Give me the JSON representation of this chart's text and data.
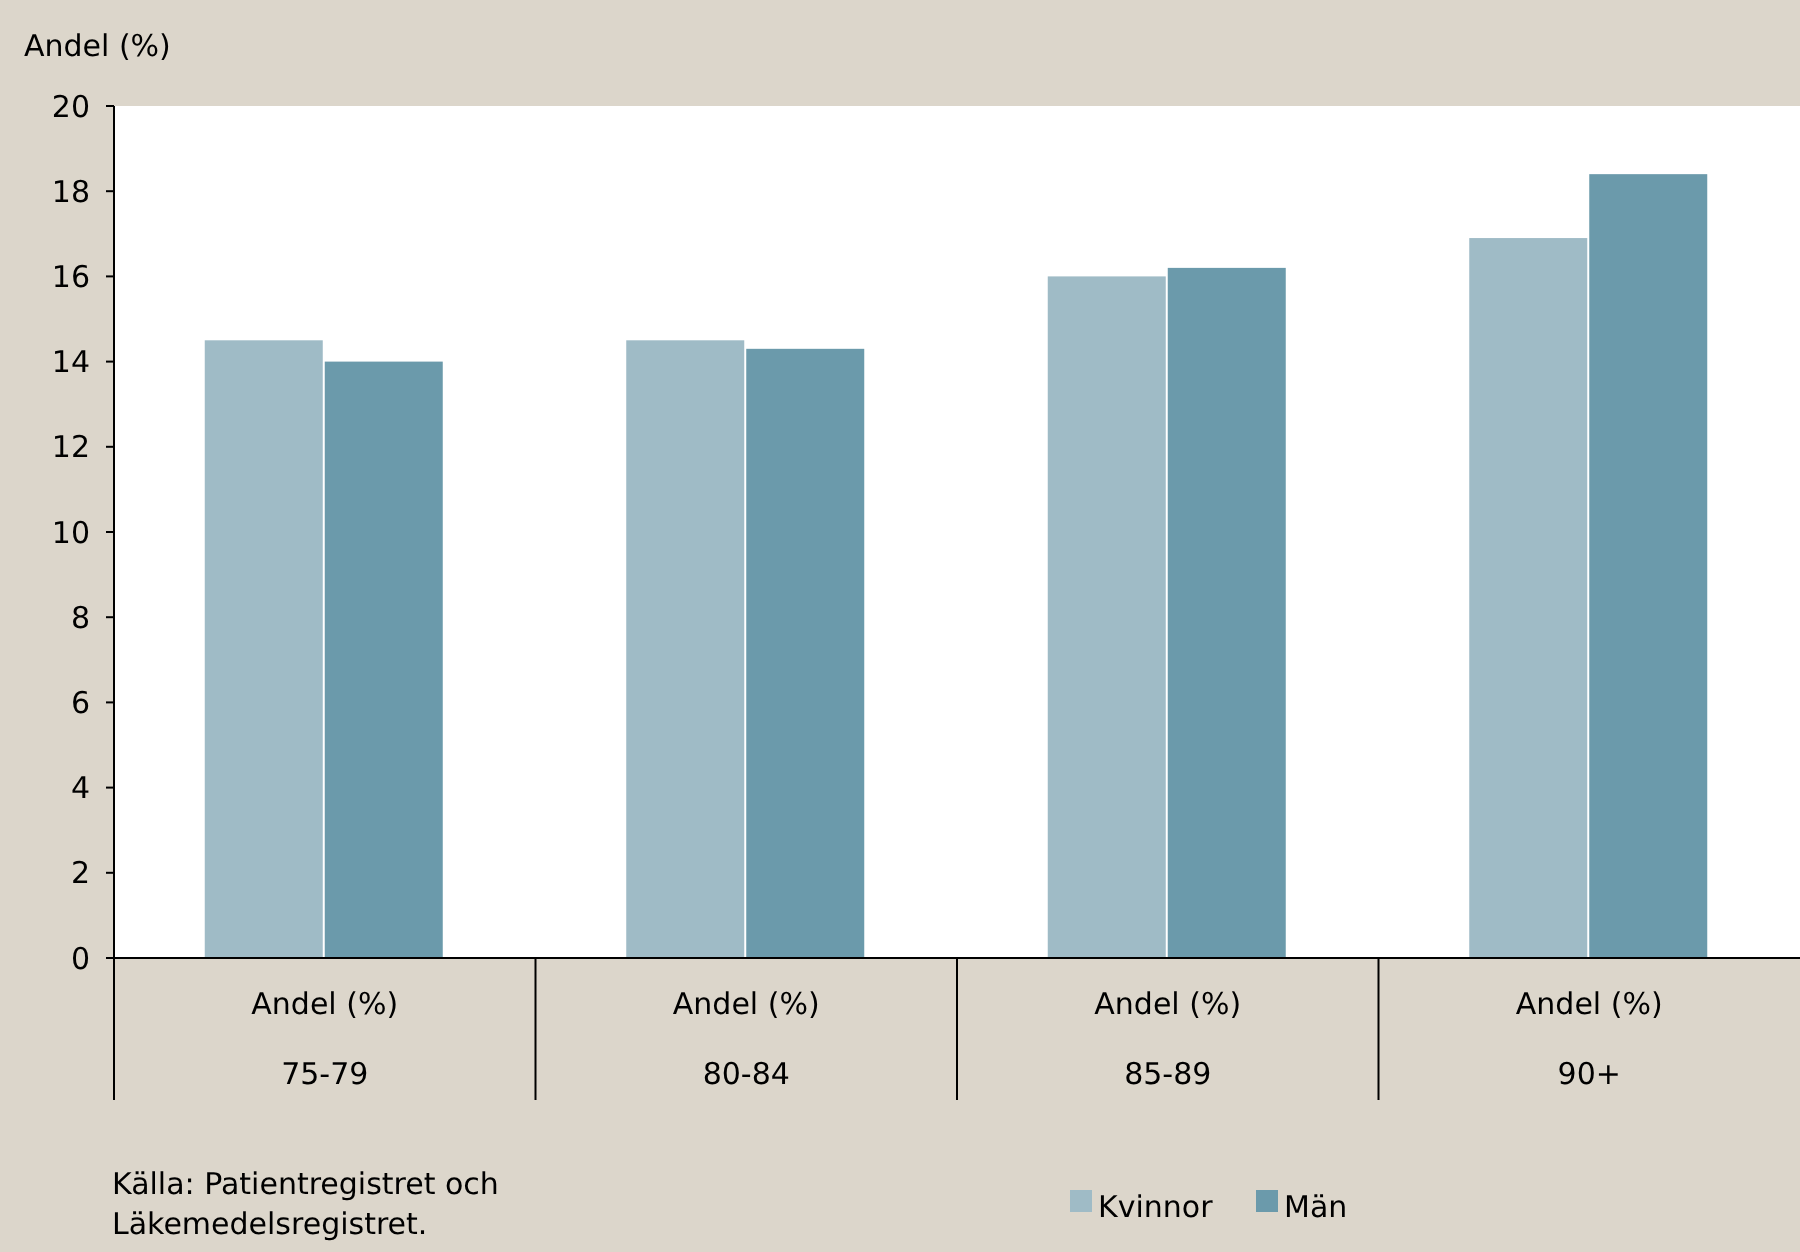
{
  "chart_data": {
    "type": "bar",
    "ylabel": "Andel (%)",
    "categories": [
      "Andel (%)\n75-79",
      "Andel (%)\n80-84",
      "Andel (%)\n85-89",
      "Andel (%)\n90+"
    ],
    "series": [
      {
        "name": "Kvinnor",
        "color": "#9fbbc6",
        "values": [
          14.5,
          14.5,
          16.0,
          16.9
        ]
      },
      {
        "name": "Män",
        "color": "#6b9aab",
        "values": [
          14.0,
          14.3,
          16.2,
          18.4
        ]
      }
    ],
    "ylim": [
      0,
      20
    ],
    "yticks": [
      0,
      2,
      4,
      6,
      8,
      10,
      12,
      14,
      16,
      18,
      20
    ],
    "grid": false,
    "legend": "bottom",
    "annotations": [
      "Källa: Patientregistret och\nLäkemedelsregistret."
    ]
  }
}
